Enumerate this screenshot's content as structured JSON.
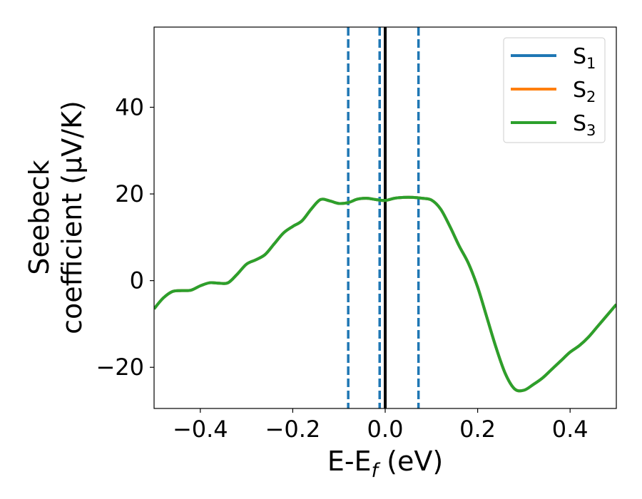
{
  "chart_data": {
    "type": "line",
    "title": "",
    "xlabel": {
      "main": "E-E",
      "sub": "f",
      "unit": " (eV)"
    },
    "ylabel": {
      "line1": "Seebeck",
      "line2": "coefficient  (μV/K)"
    },
    "xlim": [
      -0.5,
      0.5
    ],
    "ylim": [
      -29.5,
      58.5
    ],
    "xticks": [
      -0.4,
      -0.2,
      0.0,
      0.2,
      0.4
    ],
    "xtick_labels": [
      "−0.4",
      "−0.2",
      "0.0",
      "0.2",
      "0.4"
    ],
    "yticks": [
      -20,
      0,
      20,
      40
    ],
    "ytick_labels": [
      "−20",
      "0",
      "20",
      "40"
    ],
    "grid": false,
    "legend_position": "top-right",
    "vertical_lines": [
      {
        "x": -0.08,
        "style": "dashed",
        "color": "#1f77b4"
      },
      {
        "x": -0.012,
        "style": "dashed",
        "color": "#1f77b4"
      },
      {
        "x": 0.0,
        "style": "solid",
        "color": "#000000"
      },
      {
        "x": 0.072,
        "style": "dashed",
        "color": "#1f77b4"
      }
    ],
    "x": [
      -0.5,
      -0.48,
      -0.46,
      -0.44,
      -0.42,
      -0.4,
      -0.38,
      -0.36,
      -0.34,
      -0.32,
      -0.3,
      -0.28,
      -0.26,
      -0.24,
      -0.22,
      -0.2,
      -0.18,
      -0.16,
      -0.14,
      -0.12,
      -0.1,
      -0.08,
      -0.06,
      -0.04,
      -0.02,
      0.0,
      0.02,
      0.04,
      0.06,
      0.08,
      0.1,
      0.12,
      0.14,
      0.16,
      0.18,
      0.2,
      0.22,
      0.24,
      0.26,
      0.28,
      0.3,
      0.32,
      0.34,
      0.36,
      0.38,
      0.4,
      0.42,
      0.44,
      0.46,
      0.48,
      0.5
    ],
    "series": [
      {
        "name": "S",
        "sub": "1",
        "color": "#1f77b4",
        "values": [
          -6.5,
          -4.0,
          -2.5,
          -2.3,
          -2.2,
          -1.2,
          -0.5,
          -0.6,
          -0.5,
          1.5,
          3.8,
          4.8,
          6.0,
          8.5,
          11.0,
          12.5,
          13.8,
          16.5,
          18.7,
          18.4,
          17.8,
          18.0,
          18.8,
          19.0,
          18.7,
          18.5,
          19.0,
          19.2,
          19.2,
          19.0,
          18.6,
          16.5,
          12.5,
          8.0,
          4.0,
          -1.5,
          -8.5,
          -15.5,
          -21.5,
          -25.0,
          -25.3,
          -24.0,
          -22.5,
          -20.5,
          -18.5,
          -16.5,
          -15.0,
          -13.0,
          -10.5,
          -8.0,
          -5.5
        ]
      },
      {
        "name": "S",
        "sub": "2",
        "color": "#ff7f0e",
        "values": [
          -6.5,
          -4.0,
          -2.5,
          -2.3,
          -2.2,
          -1.2,
          -0.5,
          -0.6,
          -0.5,
          1.5,
          3.8,
          4.8,
          6.0,
          8.5,
          11.0,
          12.5,
          13.8,
          16.5,
          18.7,
          18.4,
          17.8,
          18.0,
          18.8,
          19.0,
          18.7,
          18.5,
          19.0,
          19.2,
          19.2,
          19.0,
          18.6,
          16.5,
          12.5,
          8.0,
          4.0,
          -1.5,
          -8.5,
          -15.5,
          -21.5,
          -25.0,
          -25.3,
          -24.0,
          -22.5,
          -20.5,
          -18.5,
          -16.5,
          -15.0,
          -13.0,
          -10.5,
          -8.0,
          -5.5
        ]
      },
      {
        "name": "S",
        "sub": "3",
        "color": "#2ca02c",
        "values": [
          -6.5,
          -4.0,
          -2.5,
          -2.3,
          -2.2,
          -1.2,
          -0.5,
          -0.6,
          -0.5,
          1.5,
          3.8,
          4.8,
          6.0,
          8.5,
          11.0,
          12.5,
          13.8,
          16.5,
          18.7,
          18.4,
          17.8,
          18.0,
          18.8,
          19.0,
          18.7,
          18.5,
          19.0,
          19.2,
          19.2,
          19.0,
          18.6,
          16.5,
          12.5,
          8.0,
          4.0,
          -1.5,
          -8.5,
          -15.5,
          -21.5,
          -25.0,
          -25.3,
          -24.0,
          -22.5,
          -20.5,
          -18.5,
          -16.5,
          -15.0,
          -13.0,
          -10.5,
          -8.0,
          -5.5
        ]
      }
    ]
  }
}
